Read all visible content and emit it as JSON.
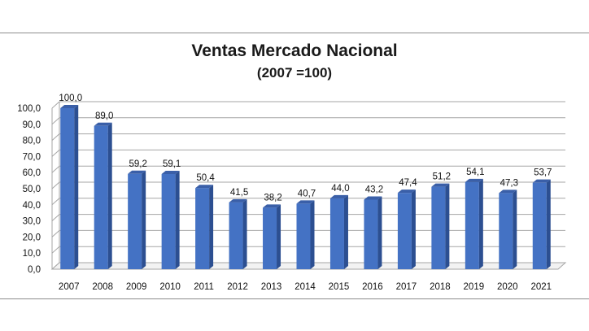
{
  "chart_data": {
    "type": "bar",
    "title": "Ventas Mercado Nacional",
    "subtitle": "(2007 =100)",
    "categories": [
      "2007",
      "2008",
      "2009",
      "2010",
      "2011",
      "2012",
      "2013",
      "2014",
      "2015",
      "2016",
      "2017",
      "2018",
      "2019",
      "2020",
      "2021"
    ],
    "values": [
      100.0,
      89.0,
      59.2,
      59.1,
      50.4,
      41.5,
      38.2,
      40.7,
      44.0,
      43.2,
      47.4,
      51.2,
      54.1,
      47.3,
      53.7
    ],
    "value_labels": [
      "100,0",
      "89,0",
      "59,2",
      "59,1",
      "50,4",
      "41,5",
      "38,2",
      "40,7",
      "44,0",
      "43,2",
      "47,4",
      "51,2",
      "54,1",
      "47,3",
      "53,7"
    ],
    "y_ticks": [
      "0,0",
      "10,0",
      "20,0",
      "30,0",
      "40,0",
      "50,0",
      "60,0",
      "70,0",
      "80,0",
      "90,0",
      "100,0"
    ],
    "ylim": [
      0,
      100
    ],
    "grid": true,
    "legend": "none",
    "bar_color": "#4472c4",
    "style": "3d-bar"
  }
}
